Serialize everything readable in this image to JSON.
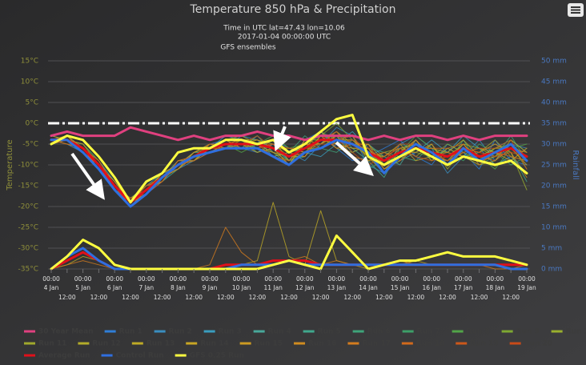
{
  "chart_data": {
    "type": "line",
    "title": "Temperature 850 hPa & Precipitation",
    "subtitle": [
      "Time in UTC lat=47.43 lon=10.06",
      "2017-01-04 00:00:00 UTC"
    ],
    "source_label": "GFS ensembles",
    "y_label": "Temperature",
    "y2_label": "Rainfall",
    "categories": [
      "00:00",
      "12:00",
      "00:00",
      "12:00",
      "00:00",
      "12:00",
      "00:00",
      "12:00",
      "00:00",
      "12:00",
      "00:00",
      "12:00",
      "00:00",
      "12:00",
      "00:00",
      "12:00",
      "00:00",
      "12:00",
      "00:00",
      "12:00",
      "00:00",
      "12:00",
      "00:00",
      "12:00",
      "00:00",
      "12:00",
      "00:00",
      "12:00",
      "00:00",
      "12:00",
      "00:00"
    ],
    "dates": [
      "4 Jan",
      null,
      "5 Jan",
      null,
      "6 Jan",
      null,
      "7 Jan",
      null,
      "8 Jan",
      null,
      "9 Jan",
      null,
      "10 Jan",
      null,
      "11 Jan",
      null,
      "12 Jan",
      null,
      "13 Jan",
      null,
      "14 Jan",
      null,
      "15 Jan",
      null,
      "16 Jan",
      null,
      "17 Jan",
      null,
      "18 Jan",
      null,
      "19 Jan"
    ],
    "ylim": [
      -35,
      15
    ],
    "yticks": [
      {
        "value": 15,
        "label": "15°C"
      },
      {
        "value": 10,
        "label": "10°C"
      },
      {
        "value": 5,
        "label": "5°C"
      },
      {
        "value": 0,
        "label": "0°C"
      },
      {
        "value": -5,
        "label": "-5°C"
      },
      {
        "value": -10,
        "label": "-10°C"
      },
      {
        "value": -15,
        "label": "-15°C"
      },
      {
        "value": -20,
        "label": "-20°C"
      },
      {
        "value": -25,
        "label": "-25°C"
      },
      {
        "value": -30,
        "label": "-30°C"
      },
      {
        "value": -35,
        "label": "-35°C"
      }
    ],
    "y2lim": [
      0,
      50
    ],
    "y2ticks": [
      {
        "value": 50,
        "label": "50 mm"
      },
      {
        "value": 45,
        "label": "45 mm"
      },
      {
        "value": 40,
        "label": "40 mm"
      },
      {
        "value": 35,
        "label": "35 mm"
      },
      {
        "value": 30,
        "label": "30 mm"
      },
      {
        "value": 25,
        "label": "25 mm"
      },
      {
        "value": 20,
        "label": "20 mm"
      },
      {
        "value": 15,
        "label": "15 mm"
      },
      {
        "value": 10,
        "label": "10 mm"
      },
      {
        "value": 5,
        "label": "5 mm"
      },
      {
        "value": 0,
        "label": "0 mm"
      }
    ],
    "grid": true,
    "zero_line": 0,
    "series": [
      {
        "name": "30 Year Mean",
        "color": "#e0407f",
        "values": [
          -3,
          -2,
          -3,
          -3,
          -3,
          -1,
          -2,
          -3,
          -4,
          -3,
          -4,
          -3,
          -3,
          -2,
          -3,
          -3,
          -4,
          -3,
          -3,
          -3,
          -4,
          -3,
          -4,
          -3,
          -3,
          -4,
          -3,
          -4,
          -3,
          -3,
          -3
        ]
      },
      {
        "name": "Run 1",
        "color": "#2f7ed8",
        "values": [
          -4,
          -4,
          -6,
          -10,
          -16,
          -19,
          -17,
          -14,
          -10,
          -7,
          -5,
          -4,
          -6,
          -7,
          -5,
          -9,
          -4,
          -2,
          -6,
          -9,
          -8,
          -6,
          -4,
          -8,
          -10,
          -5,
          -7,
          -11,
          -4,
          -9,
          -10
        ]
      },
      {
        "name": "Run 2",
        "color": "#3a8ec0",
        "values": [
          -4,
          -5,
          -7,
          -11,
          -15,
          -18,
          -15,
          -12,
          -11,
          -9,
          -7,
          -6,
          -3,
          -4,
          -8,
          -7,
          -9,
          -5,
          -1,
          -3,
          -10,
          -12,
          -5,
          -3,
          -6,
          -12,
          -8,
          -4,
          -9,
          -5,
          -6
        ]
      },
      {
        "name": "Run 3",
        "color": "#3a9dbf",
        "values": [
          -5,
          -4,
          -5,
          -9,
          -14,
          -19,
          -17,
          -13,
          -9,
          -9,
          -6,
          -3,
          -4,
          -6,
          -4,
          -6,
          -7,
          -8,
          -5,
          -2,
          -6,
          -11,
          -9,
          -7,
          -4,
          -7,
          -3,
          -6,
          -10,
          -8,
          -12
        ]
      },
      {
        "name": "Run 4",
        "color": "#48a99a",
        "values": [
          -4,
          -3,
          -6,
          -10,
          -15,
          -20,
          -16,
          -12,
          -10,
          -7,
          -7,
          -5,
          -6,
          -3,
          -7,
          -10,
          -5,
          -3,
          -3,
          -7,
          -5,
          -8,
          -10,
          -4,
          -8,
          -9,
          -5,
          -9,
          -6,
          -4,
          -7
        ]
      },
      {
        "name": "Run 5",
        "color": "#40a88d",
        "values": [
          -4,
          -4,
          -7,
          -10,
          -16,
          -18,
          -16,
          -14,
          -11,
          -8,
          -5,
          -6,
          -5,
          -5,
          -6,
          -9,
          -8,
          -4,
          -2,
          -6,
          -9,
          -13,
          -6,
          -5,
          -9,
          -6,
          -8,
          -7,
          -5,
          -7,
          -14
        ]
      },
      {
        "name": "Run 6",
        "color": "#3fa47a",
        "values": [
          -3,
          -4,
          -6,
          -11,
          -15,
          -19,
          -15,
          -13,
          -9,
          -8,
          -6,
          -4,
          -4,
          -7,
          -5,
          -7,
          -3,
          -6,
          -7,
          -4,
          -6,
          -7,
          -8,
          -9,
          -5,
          -10,
          -4,
          -10,
          -8,
          -3,
          -9
        ]
      },
      {
        "name": "Run 7",
        "color": "#3d9f68",
        "values": [
          -4,
          -5,
          -6,
          -10,
          -14,
          -19,
          -16,
          -12,
          -10,
          -9,
          -6,
          -5,
          -5,
          -4,
          -6,
          -8,
          -6,
          -2,
          -4,
          -8,
          -11,
          -9,
          -5,
          -6,
          -7,
          -7,
          -9,
          -5,
          -7,
          -10,
          -8
        ]
      },
      {
        "name": "Run 8",
        "color": "#52a548",
        "values": [
          -4,
          -4,
          -5,
          -9,
          -15,
          -20,
          -17,
          -13,
          -11,
          -7,
          -5,
          -5,
          -7,
          -5,
          -3,
          -6,
          -5,
          -5,
          -3,
          -5,
          -7,
          -10,
          -7,
          -3,
          -6,
          -8,
          -6,
          -8,
          -11,
          -6,
          -5
        ]
      },
      {
        "name": "Run 9",
        "color": "#7ea832",
        "values": [
          -5,
          -4,
          -6,
          -10,
          -16,
          -18,
          -15,
          -13,
          -10,
          -8,
          -7,
          -6,
          -5,
          -6,
          -7,
          -9,
          -7,
          -3,
          0,
          -4,
          -8,
          -8,
          -6,
          -7,
          -8,
          -5,
          -7,
          -9,
          -6,
          -5,
          -11
        ]
      },
      {
        "name": "Run 10",
        "color": "#9ab02e",
        "values": [
          -4,
          -3,
          -7,
          -11,
          -15,
          -19,
          -16,
          -14,
          -9,
          -8,
          -6,
          -4,
          -3,
          -5,
          -6,
          -10,
          -4,
          -4,
          -5,
          -6,
          -6,
          -11,
          -9,
          -5,
          -7,
          -9,
          -5,
          -6,
          -8,
          -7,
          -16
        ]
      },
      {
        "name": "Run 11",
        "color": "#a0a82c",
        "values": [
          -4,
          -4,
          -6,
          -10,
          -14,
          -19,
          -17,
          -13,
          -10,
          -9,
          -5,
          -5,
          -5,
          -6,
          -8,
          -7,
          -6,
          -6,
          -3,
          -3,
          -9,
          -7,
          -6,
          -8,
          -5,
          -11,
          -6,
          -7,
          -4,
          -8,
          -9
        ]
      },
      {
        "name": "Run 12",
        "color": "#b3ac2a",
        "values": [
          -4,
          -4,
          -6,
          -9,
          -15,
          -19,
          -16,
          -12,
          -10,
          -8,
          -6,
          -6,
          -4,
          -4,
          -5,
          -8,
          -8,
          -3,
          -6,
          -7,
          -5,
          -9,
          -7,
          -4,
          -9,
          -6,
          -8,
          -10,
          -9,
          -4,
          -7
        ]
      },
      {
        "name": "Run 13",
        "color": "#bfaa26",
        "values": [
          -3,
          -4,
          -7,
          -10,
          -16,
          -20,
          -16,
          -13,
          -11,
          -7,
          -6,
          -4,
          -6,
          -5,
          -4,
          -9,
          -5,
          -5,
          -2,
          -5,
          -8,
          -12,
          -8,
          -6,
          -6,
          -7,
          -4,
          -8,
          -6,
          -6,
          -10
        ],
        "precipitation": [
          0,
          1,
          3,
          2,
          0,
          0,
          0,
          0,
          0,
          0,
          0,
          0,
          1,
          2,
          16,
          3,
          1,
          14,
          2,
          1,
          0,
          1,
          1,
          2,
          1,
          1,
          1,
          1,
          1,
          0,
          0
        ]
      },
      {
        "name": "Run 14",
        "color": "#c8a624",
        "values": [
          -4,
          -5,
          -6,
          -11,
          -15,
          -18,
          -16,
          -13,
          -10,
          -8,
          -7,
          -5,
          -5,
          -7,
          -6,
          -6,
          -7,
          -4,
          -4,
          -4,
          -7,
          -8,
          -5,
          -9,
          -8,
          -9,
          -7,
          -6,
          -7,
          -9,
          -6
        ]
      },
      {
        "name": "Run 15",
        "color": "#cc9a22",
        "values": [
          -4,
          -4,
          -5,
          -10,
          -15,
          -19,
          -15,
          -14,
          -9,
          -9,
          -6,
          -5,
          -4,
          -5,
          -7,
          -8,
          -6,
          -2,
          -5,
          -6,
          -6,
          -10,
          -6,
          -5,
          -7,
          -8,
          -5,
          -9,
          -8,
          -5,
          -8
        ]
      },
      {
        "name": "Run 16",
        "color": "#d08c20",
        "values": [
          -5,
          -4,
          -6,
          -10,
          -14,
          -19,
          -17,
          -12,
          -10,
          -7,
          -5,
          -6,
          -5,
          -4,
          -6,
          -10,
          -4,
          -5,
          -3,
          -8,
          -9,
          -9,
          -7,
          -7,
          -5,
          -10,
          -6,
          -7,
          -5,
          -7,
          -13
        ]
      },
      {
        "name": "Run 17",
        "color": "#d47c1e",
        "values": [
          -4,
          -3,
          -6,
          -11,
          -16,
          -19,
          -16,
          -13,
          -11,
          -8,
          -6,
          -4,
          -6,
          -6,
          -5,
          -7,
          -8,
          -3,
          -6,
          -5,
          -5,
          -11,
          -8,
          -4,
          -8,
          -7,
          -8,
          -8,
          -9,
          -6,
          -7
        ],
        "precipitation": [
          0,
          1,
          2,
          1,
          0,
          0,
          0,
          0,
          0,
          0,
          1,
          10,
          4,
          1,
          1,
          2,
          3,
          1,
          2,
          1,
          1,
          1,
          2,
          1,
          1,
          1,
          1,
          1,
          0,
          0,
          1
        ]
      },
      {
        "name": "Run 18",
        "color": "#d26a1c",
        "values": [
          -4,
          -4,
          -7,
          -10,
          -15,
          -20,
          -16,
          -13,
          -10,
          -9,
          -7,
          -5,
          -4,
          -5,
          -8,
          -9,
          -5,
          -6,
          -4,
          -3,
          -8,
          -7,
          -9,
          -6,
          -6,
          -6,
          -5,
          -10,
          -7,
          -8,
          -9
        ]
      },
      {
        "name": "Run 19",
        "color": "#cc581a",
        "values": [
          -4,
          -5,
          -6,
          -9,
          -15,
          -18,
          -17,
          -14,
          -9,
          -8,
          -5,
          -5,
          -5,
          -3,
          -6,
          -8,
          -7,
          -4,
          -2,
          -7,
          -10,
          -8,
          -6,
          -8,
          -9,
          -8,
          -7,
          -6,
          -6,
          -4,
          -11
        ]
      },
      {
        "name": "Run 20",
        "color": "#c84a18",
        "values": [
          -4,
          -4,
          -6,
          -10,
          -16,
          -19,
          -15,
          -13,
          -10,
          -8,
          -6,
          -6,
          -6,
          -6,
          -5,
          -6,
          -6,
          -5,
          -5,
          -4,
          -6,
          -9,
          -5,
          -5,
          -7,
          -9,
          -6,
          -7,
          -8,
          -7,
          -8
        ]
      },
      {
        "name": "Average Run",
        "color": "#e0101a",
        "values": [
          -4,
          -4,
          -6,
          -10,
          -15,
          -19,
          -16,
          -13,
          -10,
          -8,
          -6,
          -5,
          -5,
          -5,
          -6,
          -8,
          -6,
          -4,
          -4,
          -5,
          -7,
          -9,
          -7,
          -6,
          -7,
          -8,
          -6,
          -8,
          -7,
          -6,
          -8
        ],
        "precipitation": [
          0,
          2,
          4,
          2,
          0,
          0,
          0,
          0,
          0,
          0,
          0,
          1,
          1,
          1,
          2,
          2,
          2,
          1,
          1,
          1,
          1,
          1,
          1,
          1,
          1,
          1,
          1,
          1,
          1,
          1,
          1
        ]
      },
      {
        "name": "Control Run",
        "color": "#2f6fe0",
        "values": [
          -4,
          -4,
          -7,
          -11,
          -16,
          -20,
          -17,
          -13,
          -10,
          -8,
          -7,
          -6,
          -6,
          -6,
          -8,
          -10,
          -7,
          -6,
          -4,
          -5,
          -7,
          -12,
          -8,
          -5,
          -7,
          -10,
          -6,
          -9,
          -7,
          -5,
          -9
        ],
        "precipitation": [
          0,
          3,
          5,
          2,
          0,
          0,
          0,
          0,
          0,
          0,
          0,
          0,
          1,
          1,
          1,
          2,
          1,
          1,
          1,
          1,
          1,
          1,
          1,
          1,
          1,
          1,
          1,
          1,
          1,
          0,
          0
        ]
      },
      {
        "name": "GFS 0.25 Run",
        "color": "#ffff40",
        "values": [
          -5,
          -3,
          -4,
          -8,
          -13,
          -19,
          -14,
          -12,
          -7,
          -6,
          -6,
          -4,
          -4,
          -5,
          -4,
          -7,
          -5,
          -2,
          1,
          2,
          -8,
          -10,
          -8,
          -6,
          -8,
          -10,
          -8,
          -9,
          -10,
          -9,
          -12
        ],
        "precipitation": [
          0,
          3,
          7,
          5,
          1,
          0,
          0,
          0,
          0,
          0,
          0,
          0,
          0,
          0,
          1,
          2,
          1,
          0,
          8,
          4,
          0,
          1,
          2,
          2,
          3,
          4,
          3,
          3,
          3,
          2,
          1
        ]
      }
    ]
  }
}
